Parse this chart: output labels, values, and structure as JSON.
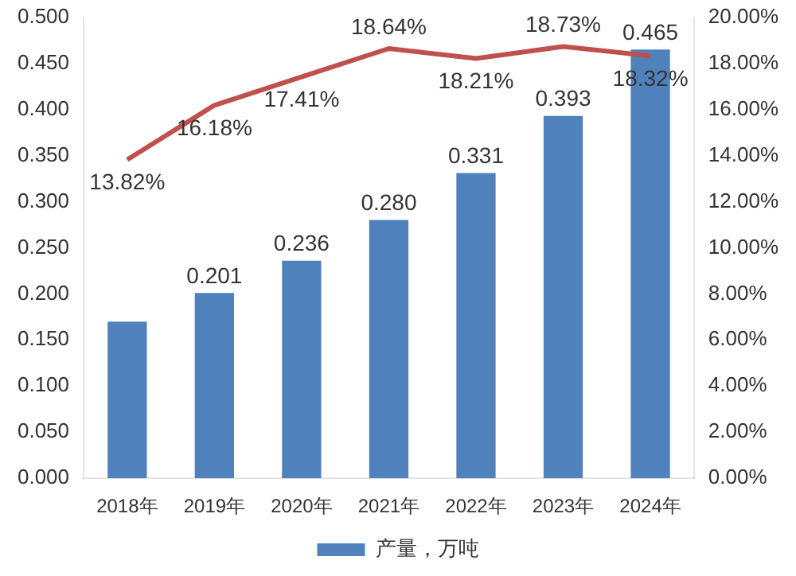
{
  "chart_data": {
    "type": "bar",
    "categories": [
      "2018年",
      "2019年",
      "2020年",
      "2021年",
      "2022年",
      "2023年",
      "2024年"
    ],
    "series": [
      {
        "name": "产量，万吨",
        "color": "#4f81bd",
        "values": [
          0.17,
          0.201,
          0.236,
          0.28,
          0.331,
          0.393,
          0.465
        ],
        "value_labels": [
          null,
          "0.201",
          "0.236",
          "0.280",
          "0.331",
          "0.393",
          "0.465"
        ]
      },
      {
        "type": "line",
        "axis": "y2",
        "color": "#c0504d",
        "values": [
          13.82,
          16.18,
          17.41,
          18.64,
          18.21,
          18.73,
          18.32
        ],
        "value_labels": [
          "13.82%",
          "16.18%",
          "17.41%",
          "18.64%",
          "18.21%",
          "18.73%",
          "18.32%"
        ]
      }
    ],
    "ylim": [
      0,
      0.5
    ],
    "yticks": [
      {
        "value": 0,
        "label": "0.000"
      },
      {
        "value": 0.05,
        "label": "0.050"
      },
      {
        "value": 0.1,
        "label": "0.100"
      },
      {
        "value": 0.15,
        "label": "0.150"
      },
      {
        "value": 0.2,
        "label": "0.200"
      },
      {
        "value": 0.25,
        "label": "0.250"
      },
      {
        "value": 0.3,
        "label": "0.300"
      },
      {
        "value": 0.35,
        "label": "0.350"
      },
      {
        "value": 0.4,
        "label": "0.400"
      },
      {
        "value": 0.45,
        "label": "0.450"
      },
      {
        "value": 0.5,
        "label": "0.500"
      }
    ],
    "y2lim": [
      0,
      20
    ],
    "y2ticks": [
      {
        "value": 0,
        "label": "0.00%"
      },
      {
        "value": 2,
        "label": "2.00%"
      },
      {
        "value": 4,
        "label": "4.00%"
      },
      {
        "value": 6,
        "label": "6.00%"
      },
      {
        "value": 8,
        "label": "8.00%"
      },
      {
        "value": 10,
        "label": "10.00%"
      },
      {
        "value": 12,
        "label": "12.00%"
      },
      {
        "value": 14,
        "label": "14.00%"
      },
      {
        "value": 16,
        "label": "16.00%"
      },
      {
        "value": 18,
        "label": "18.00%"
      },
      {
        "value": 20,
        "label": "20.00%"
      }
    ],
    "grid": false,
    "legend": "bottom",
    "marker": "none",
    "line_style": "solid"
  }
}
